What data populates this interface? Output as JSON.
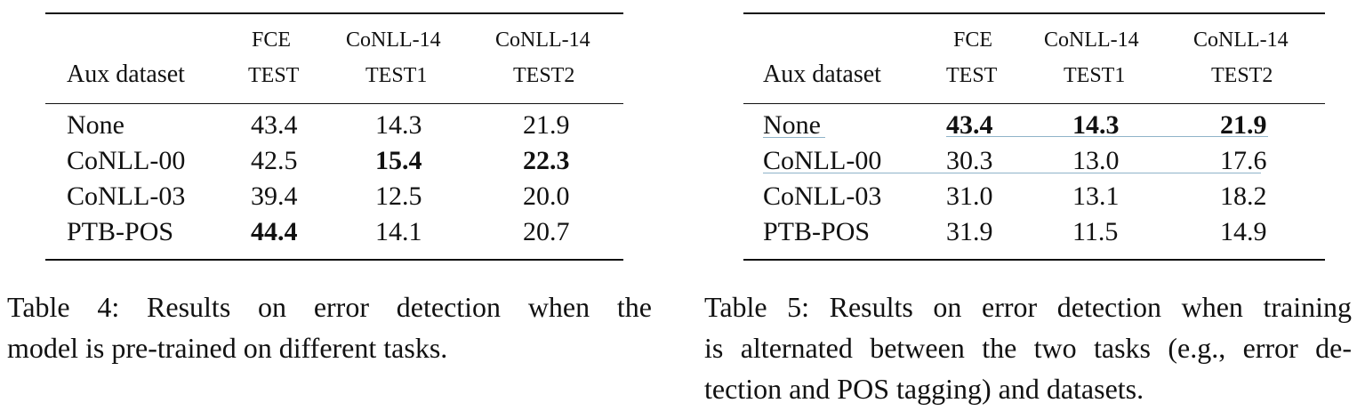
{
  "table4": {
    "headers": {
      "aux": "Aux dataset",
      "col1_top": "FCE",
      "col1_bot": "TEST",
      "col2_top": "CoNLL-14",
      "col2_bot": "TEST1",
      "col3_top": "CoNLL-14",
      "col3_bot": "TEST2"
    },
    "rows": [
      {
        "name": "None",
        "v1": "43.4",
        "v2": "14.3",
        "v3": "21.9"
      },
      {
        "name": "CoNLL-00",
        "v1": "42.5",
        "v2": "15.4",
        "v3": "22.3"
      },
      {
        "name": "CoNLL-03",
        "v1": "39.4",
        "v2": "12.5",
        "v3": "20.0"
      },
      {
        "name": "PTB-POS",
        "v1": "44.4",
        "v2": "14.1",
        "v3": "20.7"
      }
    ],
    "caption_lines": [
      "Table 4:  Results on error detection when the",
      "model is pre-trained on different tasks."
    ]
  },
  "table5": {
    "headers": {
      "aux": "Aux dataset",
      "col1_top": "FCE",
      "col1_bot": "TEST",
      "col2_top": "CoNLL-14",
      "col2_bot": "TEST1",
      "col3_top": "CoNLL-14",
      "col3_bot": "TEST2"
    },
    "rows": [
      {
        "name": "None",
        "v1": "43.4",
        "v2": "14.3",
        "v3": "21.9"
      },
      {
        "name": "CoNLL-00",
        "v1": "30.3",
        "v2": "13.0",
        "v3": "17.6"
      },
      {
        "name": "CoNLL-03",
        "v1": "31.0",
        "v2": "13.1",
        "v3": "18.2"
      },
      {
        "name": "PTB-POS",
        "v1": "31.9",
        "v2": "11.5",
        "v3": "14.9"
      }
    ],
    "caption_lines": [
      "Table 5: Results on error detection when training",
      "is alternated between the two tasks (e.g., error de-",
      "tection and POS tagging) and datasets."
    ]
  },
  "colors": {
    "text": "#111111",
    "annotation": "#8fb3c9"
  }
}
